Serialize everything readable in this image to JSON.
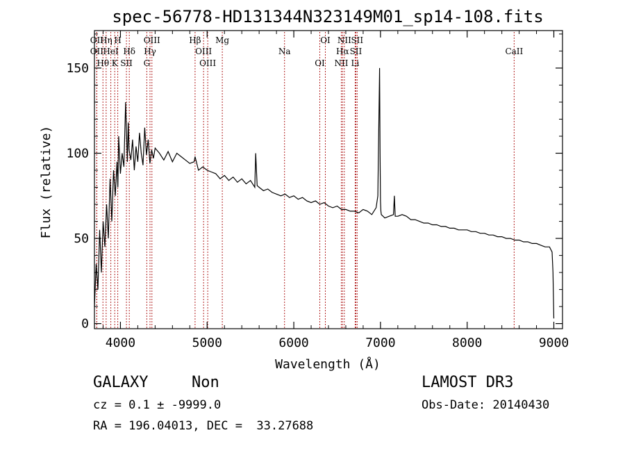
{
  "chart_data": {
    "type": "line",
    "title": "spec-56778-HD131344N323149M01_sp14-108.fits",
    "xlabel": "Wavelength (Å)",
    "ylabel": "Flux (relative)",
    "xlim": [
      3700,
      9100
    ],
    "ylim": [
      -3,
      172
    ],
    "xticks": [
      4000,
      5000,
      6000,
      7000,
      8000,
      9000
    ],
    "yticks": [
      0,
      50,
      100,
      150
    ],
    "grid": false,
    "series": [
      {
        "x": [
          3700,
          3720,
          3740,
          3760,
          3780,
          3800,
          3820,
          3840,
          3860,
          3880,
          3900,
          3920,
          3940,
          3960,
          3970,
          3980,
          4000,
          4020,
          4040,
          4060,
          4080,
          4090,
          4100,
          4120,
          4140,
          4160,
          4180,
          4200,
          4220,
          4240,
          4260,
          4280,
          4300,
          4320,
          4340,
          4360,
          4380,
          4400,
          4450,
          4500,
          4550,
          4600,
          4650,
          4700,
          4750,
          4800,
          4850,
          4861,
          4900,
          4950,
          5000,
          5050,
          5100,
          5150,
          5200,
          5250,
          5300,
          5350,
          5400,
          5450,
          5500,
          5550,
          5560,
          5577,
          5600,
          5650,
          5700,
          5750,
          5800,
          5850,
          5900,
          5950,
          6000,
          6050,
          6100,
          6150,
          6200,
          6250,
          6300,
          6350,
          6400,
          6450,
          6500,
          6550,
          6600,
          6650,
          6700,
          6750,
          6800,
          6850,
          6900,
          6950,
          6970,
          6990,
          6995,
          7000,
          7005,
          7010,
          7030,
          7050,
          7100,
          7150,
          7160,
          7170,
          7200,
          7250,
          7300,
          7350,
          7400,
          7450,
          7500,
          7550,
          7600,
          7650,
          7700,
          7750,
          7800,
          7850,
          7900,
          7950,
          8000,
          8050,
          8100,
          8150,
          8200,
          8250,
          8300,
          8350,
          8400,
          8450,
          8500,
          8550,
          8600,
          8650,
          8700,
          8750,
          8800,
          8850,
          8900,
          8950,
          8980,
          8990,
          9000
        ],
        "y": [
          10,
          35,
          20,
          55,
          30,
          60,
          45,
          70,
          50,
          85,
          60,
          90,
          75,
          95,
          80,
          110,
          88,
          100,
          92,
          130,
          95,
          118,
          102,
          96,
          108,
          90,
          104,
          95,
          112,
          100,
          93,
          115,
          99,
          108,
          94,
          102,
          97,
          103,
          100,
          96,
          101,
          95,
          100,
          98,
          96,
          94,
          95,
          98,
          90,
          92,
          90,
          89,
          88,
          85,
          87,
          84,
          86,
          83,
          85,
          82,
          84,
          80,
          100,
          81,
          80,
          78,
          79,
          77,
          76,
          75,
          76,
          74,
          75,
          73,
          74,
          72,
          71,
          72,
          70,
          71,
          69,
          68,
          69,
          67,
          67,
          66,
          66,
          65,
          67,
          66,
          64,
          68,
          75,
          150,
          100,
          72,
          66,
          64,
          63,
          62,
          63,
          64,
          75,
          63,
          63,
          64,
          63,
          61,
          61,
          60,
          59,
          59,
          58,
          58,
          57,
          57,
          56,
          56,
          55,
          55,
          55,
          54,
          54,
          53,
          53,
          52,
          52,
          51,
          51,
          50,
          50,
          49,
          49,
          48,
          48,
          47,
          47,
          46,
          45,
          45,
          42,
          30,
          3
        ]
      }
    ],
    "lines": [
      {
        "name": "OII",
        "x": 3727
      },
      {
        "name": "OII",
        "x": 3727
      },
      {
        "name": "Hθ",
        "x": 3798
      },
      {
        "name": "Hη",
        "x": 3835
      },
      {
        "name": "HeI",
        "x": 3889
      },
      {
        "name": "K",
        "x": 3934
      },
      {
        "name": "H",
        "x": 3969
      },
      {
        "name": "Hδ",
        "x": 4102
      },
      {
        "name": "SII",
        "x": 4069
      },
      {
        "name": "OIII",
        "x": 4363
      },
      {
        "name": "Hγ",
        "x": 4341
      },
      {
        "name": "G",
        "x": 4304
      },
      {
        "name": "Hβ",
        "x": 4861
      },
      {
        "name": "OIII",
        "x": 4959
      },
      {
        "name": "OIII",
        "x": 5007
      },
      {
        "name": "Mg",
        "x": 5175
      },
      {
        "name": "Na",
        "x": 5893
      },
      {
        "name": "OI",
        "x": 6300
      },
      {
        "name": "OI",
        "x": 6364
      },
      {
        "name": "Hα",
        "x": 6563
      },
      {
        "name": "NII",
        "x": 6548
      },
      {
        "name": "NII",
        "x": 6583
      },
      {
        "name": "SII",
        "x": 6716
      },
      {
        "name": "Li",
        "x": 6708
      },
      {
        "name": "SII",
        "x": 6731
      },
      {
        "name": "CaII",
        "x": 8542
      }
    ]
  },
  "info": {
    "classification": "GALAXY",
    "subclass": "Non",
    "survey": "LAMOST DR3",
    "cz": "cz = 0.1 ± -9999.0",
    "obs_date": "Obs-Date: 20140430",
    "coords": "RA = 196.04013, DEC =  33.27688"
  }
}
